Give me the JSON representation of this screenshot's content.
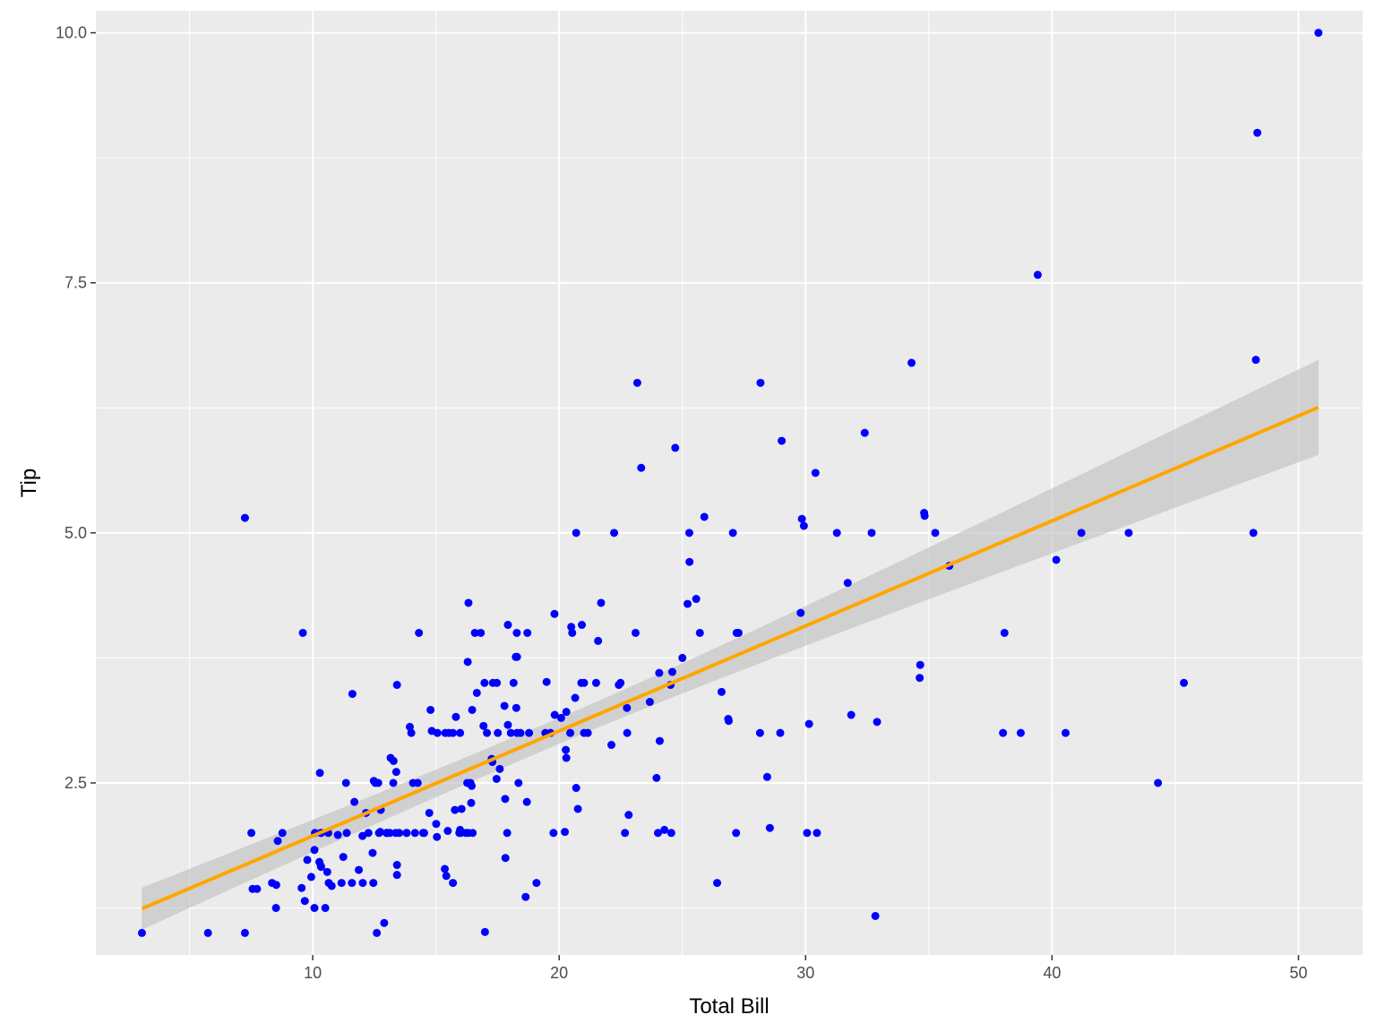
{
  "chart_data": {
    "type": "scatter",
    "xlabel": "Total Bill",
    "ylabel": "Tip",
    "xlim": [
      1.2,
      52.6
    ],
    "ylim": [
      0.78,
      10.22
    ],
    "x_ticks": [
      10,
      20,
      30,
      40,
      50
    ],
    "x_tick_labels": [
      "10",
      "20",
      "30",
      "40",
      "50"
    ],
    "y_ticks": [
      2.5,
      5.0,
      7.5,
      10.0
    ],
    "y_tick_labels": [
      "2.5",
      "5.0",
      "7.5",
      "10.0"
    ],
    "grid": true,
    "panel_color": "#ebebeb",
    "grid_color": "#ffffff",
    "point_color": "#0000ff",
    "line_color": "#ffa500",
    "band_color": "#bebebe",
    "points": [
      [
        16.99,
        1.01
      ],
      [
        10.34,
        1.66
      ],
      [
        21.01,
        3.5
      ],
      [
        23.68,
        3.31
      ],
      [
        24.59,
        3.61
      ],
      [
        25.29,
        4.71
      ],
      [
        8.77,
        2.0
      ],
      [
        26.88,
        3.12
      ],
      [
        15.04,
        1.96
      ],
      [
        14.78,
        3.23
      ],
      [
        10.27,
        1.71
      ],
      [
        35.26,
        5.0
      ],
      [
        15.42,
        1.57
      ],
      [
        18.43,
        3.0
      ],
      [
        14.83,
        3.02
      ],
      [
        21.58,
        3.92
      ],
      [
        10.33,
        1.67
      ],
      [
        16.29,
        3.71
      ],
      [
        16.97,
        3.5
      ],
      [
        20.65,
        3.35
      ],
      [
        17.92,
        4.08
      ],
      [
        20.29,
        2.75
      ],
      [
        15.77,
        2.23
      ],
      [
        39.42,
        7.58
      ],
      [
        19.82,
        3.18
      ],
      [
        17.81,
        2.34
      ],
      [
        13.37,
        2.0
      ],
      [
        12.69,
        2.0
      ],
      [
        21.7,
        4.3
      ],
      [
        19.65,
        3.0
      ],
      [
        9.55,
        1.45
      ],
      [
        18.35,
        2.5
      ],
      [
        15.06,
        3.0
      ],
      [
        20.69,
        2.45
      ],
      [
        17.78,
        3.27
      ],
      [
        24.06,
        3.6
      ],
      [
        16.31,
        2.0
      ],
      [
        16.93,
        3.07
      ],
      [
        18.69,
        2.31
      ],
      [
        31.27,
        5.0
      ],
      [
        16.04,
        2.24
      ],
      [
        17.46,
        2.54
      ],
      [
        13.94,
        3.06
      ],
      [
        9.68,
        1.32
      ],
      [
        30.4,
        5.6
      ],
      [
        18.29,
        3.0
      ],
      [
        22.23,
        5.0
      ],
      [
        32.4,
        6.0
      ],
      [
        28.55,
        2.05
      ],
      [
        18.04,
        3.0
      ],
      [
        12.54,
        2.5
      ],
      [
        10.29,
        2.6
      ],
      [
        34.81,
        5.2
      ],
      [
        9.94,
        1.56
      ],
      [
        25.56,
        4.34
      ],
      [
        19.49,
        3.51
      ],
      [
        38.01,
        3.0
      ],
      [
        26.41,
        1.5
      ],
      [
        11.24,
        1.76
      ],
      [
        48.27,
        6.73
      ],
      [
        20.29,
        3.21
      ],
      [
        13.81,
        2.0
      ],
      [
        11.02,
        1.98
      ],
      [
        18.29,
        3.76
      ],
      [
        17.59,
        2.64
      ],
      [
        20.08,
        3.15
      ],
      [
        16.45,
        2.47
      ],
      [
        3.07,
        1.0
      ],
      [
        20.23,
        2.01
      ],
      [
        15.01,
        2.09
      ],
      [
        12.02,
        1.97
      ],
      [
        17.07,
        3.0
      ],
      [
        26.86,
        3.14
      ],
      [
        25.28,
        5.0
      ],
      [
        14.73,
        2.2
      ],
      [
        10.51,
        1.25
      ],
      [
        17.92,
        3.08
      ],
      [
        27.2,
        4.0
      ],
      [
        22.76,
        3.0
      ],
      [
        17.29,
        2.71
      ],
      [
        19.44,
        3.0
      ],
      [
        16.66,
        3.4
      ],
      [
        10.07,
        1.83
      ],
      [
        32.68,
        5.0
      ],
      [
        15.98,
        2.03
      ],
      [
        34.83,
        5.17
      ],
      [
        13.03,
        2.0
      ],
      [
        18.28,
        4.0
      ],
      [
        24.71,
        5.85
      ],
      [
        21.16,
        3.0
      ],
      [
        28.97,
        3.0
      ],
      [
        22.49,
        3.5
      ],
      [
        5.75,
        1.0
      ],
      [
        16.32,
        4.3
      ],
      [
        22.75,
        3.25
      ],
      [
        40.17,
        4.73
      ],
      [
        27.28,
        4.0
      ],
      [
        12.03,
        1.5
      ],
      [
        21.01,
        3.0
      ],
      [
        12.46,
        1.5
      ],
      [
        11.35,
        2.5
      ],
      [
        15.38,
        3.0
      ],
      [
        44.3,
        2.5
      ],
      [
        22.42,
        3.48
      ],
      [
        20.92,
        4.08
      ],
      [
        15.36,
        1.64
      ],
      [
        20.49,
        4.06
      ],
      [
        25.21,
        4.29
      ],
      [
        18.24,
        3.76
      ],
      [
        14.31,
        4.0
      ],
      [
        14.0,
        3.0
      ],
      [
        7.25,
        1.0
      ],
      [
        38.07,
        4.0
      ],
      [
        23.95,
        2.55
      ],
      [
        25.71,
        4.0
      ],
      [
        17.31,
        3.5
      ],
      [
        29.93,
        5.07
      ],
      [
        10.65,
        1.5
      ],
      [
        12.43,
        1.8
      ],
      [
        24.08,
        2.92
      ],
      [
        11.69,
        2.31
      ],
      [
        13.42,
        1.68
      ],
      [
        14.26,
        2.5
      ],
      [
        15.95,
        2.0
      ],
      [
        12.48,
        2.52
      ],
      [
        29.8,
        4.2
      ],
      [
        8.52,
        1.48
      ],
      [
        14.52,
        2.0
      ],
      [
        11.38,
        2.0
      ],
      [
        22.82,
        2.18
      ],
      [
        19.08,
        1.5
      ],
      [
        20.27,
        2.83
      ],
      [
        11.17,
        1.5
      ],
      [
        12.26,
        2.0
      ],
      [
        18.26,
        3.25
      ],
      [
        8.51,
        1.25
      ],
      [
        10.33,
        2.0
      ],
      [
        14.15,
        2.0
      ],
      [
        16.0,
        2.0
      ],
      [
        13.16,
        2.75
      ],
      [
        17.47,
        3.5
      ],
      [
        34.3,
        6.7
      ],
      [
        41.19,
        5.0
      ],
      [
        27.05,
        5.0
      ],
      [
        16.43,
        2.3
      ],
      [
        8.35,
        1.5
      ],
      [
        18.64,
        1.36
      ],
      [
        11.87,
        1.63
      ],
      [
        9.78,
        1.73
      ],
      [
        7.51,
        2.0
      ],
      [
        14.07,
        2.5
      ],
      [
        13.13,
        2.0
      ],
      [
        17.26,
        2.74
      ],
      [
        24.55,
        2.0
      ],
      [
        19.77,
        2.0
      ],
      [
        29.85,
        5.14
      ],
      [
        48.17,
        5.0
      ],
      [
        25.0,
        3.75
      ],
      [
        13.39,
        2.61
      ],
      [
        16.49,
        2.0
      ],
      [
        21.5,
        3.5
      ],
      [
        12.66,
        2.5
      ],
      [
        16.21,
        2.0
      ],
      [
        13.81,
        2.0
      ],
      [
        17.51,
        3.0
      ],
      [
        24.52,
        3.48
      ],
      [
        20.76,
        2.24
      ],
      [
        31.71,
        4.5
      ],
      [
        10.59,
        1.61
      ],
      [
        10.63,
        2.0
      ],
      [
        50.81,
        10.0
      ],
      [
        15.81,
        3.16
      ],
      [
        7.25,
        5.15
      ],
      [
        31.85,
        3.18
      ],
      [
        16.82,
        4.0
      ],
      [
        32.9,
        3.11
      ],
      [
        17.89,
        2.0
      ],
      [
        14.48,
        2.0
      ],
      [
        9.6,
        4.0
      ],
      [
        34.63,
        3.55
      ],
      [
        34.65,
        3.68
      ],
      [
        23.33,
        5.65
      ],
      [
        45.35,
        3.5
      ],
      [
        23.17,
        6.5
      ],
      [
        40.55,
        3.0
      ],
      [
        20.69,
        5.0
      ],
      [
        20.9,
        3.5
      ],
      [
        30.46,
        2.0
      ],
      [
        18.15,
        3.5
      ],
      [
        23.1,
        4.0
      ],
      [
        15.69,
        1.5
      ],
      [
        19.81,
        4.19
      ],
      [
        28.44,
        2.56
      ],
      [
        15.48,
        2.02
      ],
      [
        16.58,
        4.0
      ],
      [
        7.56,
        1.44
      ],
      [
        10.34,
        2.0
      ],
      [
        43.11,
        5.0
      ],
      [
        13.0,
        2.0
      ],
      [
        13.51,
        2.0
      ],
      [
        18.71,
        4.0
      ],
      [
        12.74,
        2.01
      ],
      [
        13.0,
        2.0
      ],
      [
        16.4,
        2.5
      ],
      [
        20.53,
        4.0
      ],
      [
        16.47,
        3.23
      ],
      [
        26.59,
        3.41
      ],
      [
        38.73,
        3.0
      ],
      [
        24.27,
        2.03
      ],
      [
        12.76,
        2.23
      ],
      [
        30.06,
        2.0
      ],
      [
        25.89,
        5.16
      ],
      [
        48.33,
        9.0
      ],
      [
        13.27,
        2.5
      ],
      [
        28.17,
        6.5
      ],
      [
        12.9,
        1.1
      ],
      [
        28.15,
        3.0
      ],
      [
        11.59,
        1.5
      ],
      [
        7.74,
        1.44
      ],
      [
        30.14,
        3.09
      ],
      [
        12.16,
        2.2
      ],
      [
        13.42,
        3.48
      ],
      [
        8.58,
        1.92
      ],
      [
        15.98,
        3.0
      ],
      [
        13.42,
        1.58
      ],
      [
        16.27,
        2.5
      ],
      [
        10.09,
        2.0
      ],
      [
        20.45,
        3.0
      ],
      [
        13.28,
        2.72
      ],
      [
        22.12,
        2.88
      ],
      [
        24.01,
        2.0
      ],
      [
        15.69,
        3.0
      ],
      [
        11.61,
        3.39
      ],
      [
        10.77,
        1.47
      ],
      [
        15.53,
        3.0
      ],
      [
        10.07,
        1.25
      ],
      [
        12.6,
        1.0
      ],
      [
        32.83,
        1.17
      ],
      [
        35.83,
        4.67
      ],
      [
        29.03,
        5.92
      ],
      [
        27.18,
        2.0
      ],
      [
        22.67,
        2.0
      ],
      [
        17.82,
        1.75
      ],
      [
        18.78,
        3.0
      ]
    ],
    "fit": {
      "intercept": 0.92,
      "slope": 0.105,
      "x_range": [
        3.07,
        50.81
      ],
      "band_low": [
        1.08,
        5.78
      ],
      "band_high": [
        1.5,
        6.73
      ]
    }
  }
}
